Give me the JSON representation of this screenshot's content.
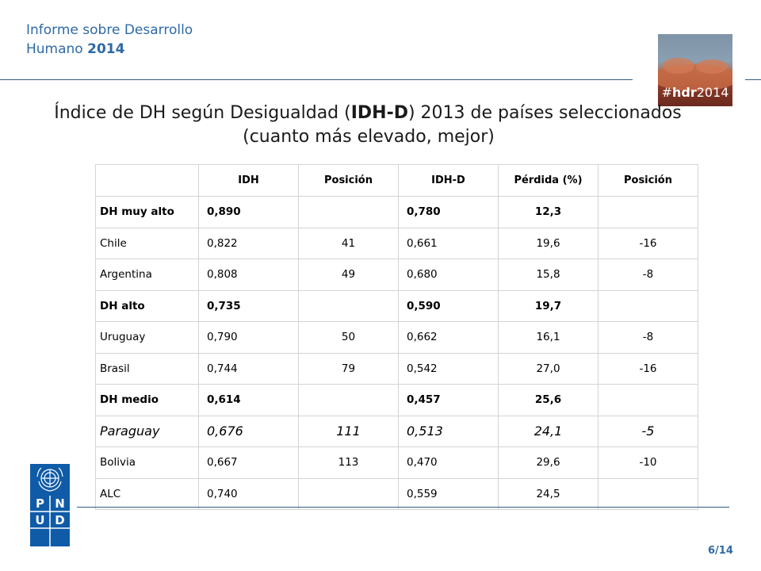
{
  "header": {
    "line1": "Informe sobre Desarrollo",
    "line2_prefix": "Humano",
    "line2_year": "2014"
  },
  "badge": {
    "prefix": "#",
    "bold": "hdr",
    "suffix": "2014"
  },
  "title": {
    "line1_a": "Índice de DH según Desigualdad (",
    "line1_bold": "IDH-D",
    "line1_b": ") 2013 de países seleccionados",
    "line2": "(cuanto más elevado, mejor)"
  },
  "table": {
    "headers": [
      "",
      "IDH",
      "Posición",
      "IDH-D",
      "Pérdida (%)",
      "Posición"
    ],
    "rows": [
      {
        "name": "DH muy alto",
        "idh": "0,890",
        "pos": "",
        "idhd": "0,780",
        "loss": "12,3",
        "pos2": ""
      },
      {
        "name": "Chile",
        "idh": "0,822",
        "pos": "41",
        "idhd": "0,661",
        "loss": "19,6",
        "pos2": "-16"
      },
      {
        "name": "Argentina",
        "idh": "0,808",
        "pos": "49",
        "idhd": "0,680",
        "loss": "15,8",
        "pos2": "-8"
      },
      {
        "name": "DH alto",
        "idh": "0,735",
        "pos": "",
        "idhd": "0,590",
        "loss": "19,7",
        "pos2": ""
      },
      {
        "name": "Uruguay",
        "idh": "0,790",
        "pos": "50",
        "idhd": "0,662",
        "loss": "16,1",
        "pos2": "-8"
      },
      {
        "name": "Brasil",
        "idh": "0,744",
        "pos": "79",
        "idhd": "0,542",
        "loss": "27,0",
        "pos2": "-16"
      },
      {
        "name": "DH medio",
        "idh": "0,614",
        "pos": "",
        "idhd": "0,457",
        "loss": "25,6",
        "pos2": ""
      },
      {
        "name": "Paraguay",
        "idh": "0,676",
        "pos": "111",
        "idhd": "0,513",
        "loss": "24,1",
        "pos2": "-5"
      },
      {
        "name": "Bolivia",
        "idh": "0,667",
        "pos": "113",
        "idhd": "0,470",
        "loss": "29,6",
        "pos2": "-10"
      },
      {
        "name": "ALC",
        "idh": "0,740",
        "pos": "",
        "idhd": "0,559",
        "loss": "24,5",
        "pos2": ""
      }
    ]
  },
  "logo": {
    "letters": [
      "P",
      "N",
      "U",
      "D"
    ]
  },
  "page": "6/14",
  "colors": {
    "accent": "#2e6aa6",
    "rule": "#2f5d8a",
    "undp": "#0f5ba7"
  }
}
